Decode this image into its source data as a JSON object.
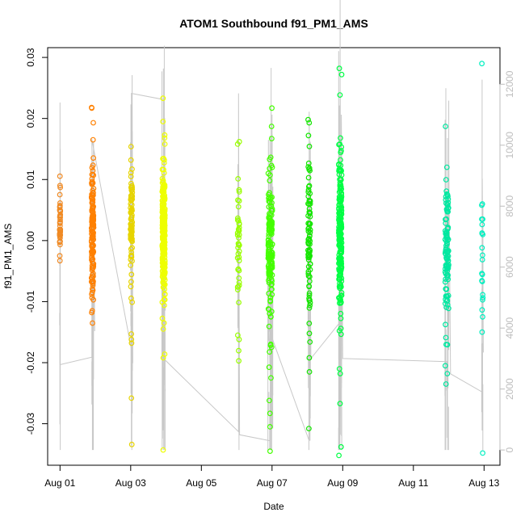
{
  "chart_data": {
    "type": "scatter",
    "title": "ATOM1 Southbound f91_PM1_AMS",
    "xlabel": "Date",
    "ylabel": "f91_PM1_AMS",
    "x_unit": "days since Aug 01",
    "xlim": [
      -0.35,
      12.45
    ],
    "ylim": [
      -0.0368,
      0.0316
    ],
    "y_ticks": [
      -0.03,
      -0.02,
      -0.01,
      0.0,
      0.01,
      0.02,
      0.03
    ],
    "y_tick_labels": [
      "-0.03",
      "-0.02",
      "-0.01",
      "0.00",
      "0.01",
      "0.02",
      "0.03"
    ],
    "x_ticks": [
      0,
      2,
      4,
      6,
      8,
      10,
      12
    ],
    "x_tick_labels": [
      "Aug 01",
      "Aug 03",
      "Aug 05",
      "Aug 07",
      "Aug 09",
      "Aug 11",
      "Aug 13"
    ],
    "secondary_y": {
      "label": "",
      "ylim": [
        -500,
        13200
      ],
      "ticks": [
        0,
        2000,
        4000,
        6000,
        8000,
        10000,
        12000
      ],
      "tick_labels": [
        "0",
        "2000",
        "4000",
        "6000",
        "8000",
        "10000",
        "12000"
      ]
    },
    "grid": false,
    "clusters": [
      {
        "day": 0.0,
        "spread": 0.02,
        "center": 0.0025,
        "sd": 0.0025,
        "n": 40,
        "outliers": [
          0.009,
          0.0087,
          -0.0033,
          -0.0025
        ],
        "color": "#f08a24"
      },
      {
        "day": 0.92,
        "spread": 0.06,
        "center": 0.0015,
        "sd": 0.0045,
        "n": 150,
        "outliers": [
          0.0218,
          0.0217,
          0.0193,
          0.0165,
          0.0108,
          -0.0085,
          -0.0088,
          -0.0097,
          -0.0115,
          -0.0118
        ],
        "color": "#ff8000"
      },
      {
        "day": 2.02,
        "spread": 0.05,
        "center": 0.0025,
        "sd": 0.0042,
        "n": 90,
        "outliers": [
          0.0117,
          0.0105,
          -0.0153,
          -0.0162,
          -0.0168,
          -0.0258,
          -0.0334
        ],
        "color": "#e7d400"
      },
      {
        "day": 2.93,
        "spread": 0.08,
        "center": 0.0015,
        "sd": 0.005,
        "n": 260,
        "outliers": [
          0.0233,
          0.0195,
          0.0168,
          0.0158,
          -0.0135,
          -0.0145,
          -0.0192,
          -0.0343
        ],
        "color": "#eeff00"
      },
      {
        "day": 5.05,
        "spread": 0.05,
        "center": 0.0005,
        "sd": 0.0065,
        "n": 40,
        "outliers": [
          0.0162,
          0.0158,
          -0.0155,
          -0.0162,
          -0.0197
        ],
        "color": "#99ff00"
      },
      {
        "day": 5.95,
        "spread": 0.12,
        "center": -0.0005,
        "sd": 0.006,
        "n": 160,
        "outliers": [
          0.0217,
          0.0187,
          0.0167,
          -0.0225,
          -0.0262,
          -0.0283,
          -0.0305,
          -0.0345
        ],
        "color": "#44ff00"
      },
      {
        "day": 7.05,
        "spread": 0.06,
        "center": 0.0005,
        "sd": 0.007,
        "n": 80,
        "outliers": [
          0.0198,
          0.0193,
          0.0172,
          -0.0192,
          -0.0215,
          -0.0308
        ],
        "color": "#14e600"
      },
      {
        "day": 7.93,
        "spread": 0.08,
        "center": 0.001,
        "sd": 0.0065,
        "n": 200,
        "outliers": [
          0.0282,
          0.0272,
          0.0168,
          0.0147,
          -0.021,
          -0.0218,
          -0.0267,
          -0.0338,
          -0.0352
        ],
        "color": "#00ff44"
      },
      {
        "day": 10.95,
        "spread": 0.1,
        "center": -0.0015,
        "sd": 0.0055,
        "n": 100,
        "outliers": [
          0.0187,
          0.012,
          -0.0205,
          -0.0218,
          -0.0235
        ],
        "color": "#00e8a0"
      },
      {
        "day": 11.95,
        "spread": 0.03,
        "center": -0.003,
        "sd": 0.006,
        "n": 18,
        "outliers": [
          0.029,
          0.006,
          0.0058,
          -0.015,
          -0.0348
        ],
        "color": "#00f0c0"
      }
    ],
    "line_series": {
      "name": "secondary (gray line)",
      "color": "#c8c8c8",
      "path_days_values": [
        [
          0.0,
          11400
        ],
        [
          0.0,
          2800
        ],
        [
          0.92,
          3050
        ],
        [
          0.92,
          300
        ],
        [
          0.95,
          9800
        ],
        [
          0.98,
          3900
        ],
        [
          0.9,
          10200
        ],
        [
          2.02,
          3300
        ],
        [
          2.02,
          150
        ],
        [
          2.04,
          12300
        ],
        [
          2.06,
          2850
        ],
        [
          2.02,
          11700
        ],
        [
          2.93,
          11500
        ],
        [
          2.93,
          3000
        ],
        [
          5.05,
          600
        ],
        [
          5.05,
          11700
        ],
        [
          5.08,
          500
        ],
        [
          5.95,
          300
        ],
        [
          6.0,
          11000
        ],
        [
          6.02,
          700
        ],
        [
          5.9,
          4000
        ],
        [
          7.05,
          300
        ],
        [
          7.05,
          11100
        ],
        [
          7.1,
          3000
        ],
        [
          7.93,
          4200
        ],
        [
          7.93,
          500
        ],
        [
          7.96,
          11000
        ],
        [
          8.0,
          3000
        ],
        [
          10.95,
          2900
        ],
        [
          10.95,
          400
        ],
        [
          11.0,
          9500
        ],
        [
          11.05,
          2500
        ],
        [
          11.95,
          1900
        ],
        [
          11.95,
          8900
        ],
        [
          11.98,
          3200
        ]
      ]
    }
  }
}
